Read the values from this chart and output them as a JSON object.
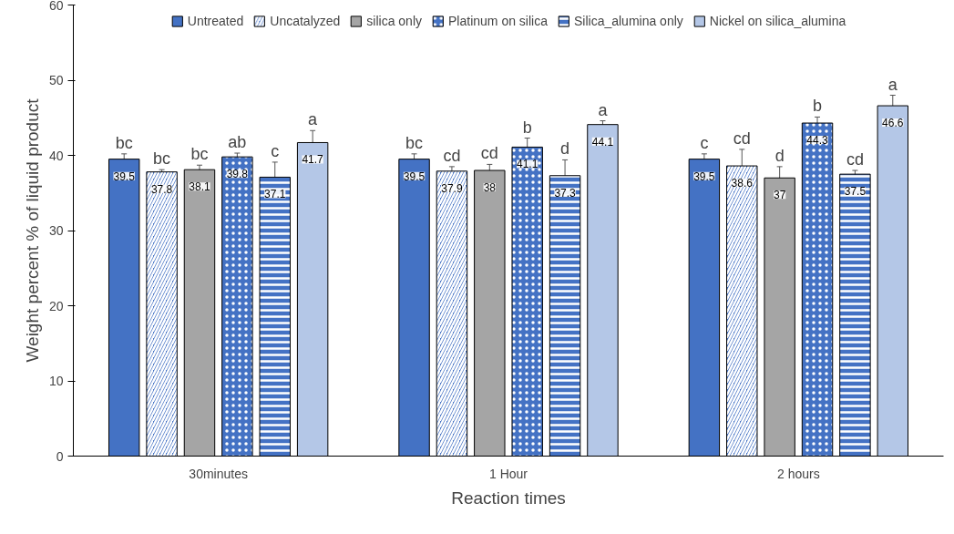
{
  "chart_data": {
    "type": "bar",
    "xlabel": "Reaction times",
    "ylabel": "Weight percent % of liquid product",
    "categories": [
      "30minutes",
      "1 Hour",
      "2 hours"
    ],
    "series": [
      {
        "name": "Untreated",
        "color": "#4472c4",
        "values": [
          39.5,
          39.5,
          39.5
        ],
        "errors": [
          0.7,
          0.7,
          0.7
        ]
      },
      {
        "name": "Uncatalyzed",
        "color": "#4472c4",
        "values": [
          37.8,
          37.9,
          38.6
        ],
        "errors": [
          0.3,
          0.6,
          2.2
        ]
      },
      {
        "name": "silica only",
        "color": "#a5a5a5",
        "values": [
          38.1,
          38,
          37
        ],
        "errors": [
          0.6,
          0.8,
          1.5
        ]
      },
      {
        "name": "Platinum on silica",
        "color": "#4472c4",
        "values": [
          39.8,
          41.1,
          44.3
        ],
        "errors": [
          0.5,
          1.2,
          0.8
        ]
      },
      {
        "name": "Silica_alumina only",
        "color": "#4472c4",
        "values": [
          37.1,
          37.3,
          37.5
        ],
        "errors": [
          2.0,
          2.1,
          0.5
        ]
      },
      {
        "name": "Nickel on silica_alumina",
        "color": "#b4c7e7",
        "values": [
          41.7,
          44.1,
          46.6
        ],
        "errors": [
          1.6,
          0.5,
          1.4
        ]
      }
    ],
    "annotations": [
      "bc",
      "bc",
      "bc",
      "ab",
      "c",
      "a",
      "bc",
      "cd",
      "cd",
      "b",
      "d",
      "a",
      "c",
      "cd",
      "d",
      "b",
      "cd",
      "a"
    ],
    "ylim": [
      0,
      60
    ],
    "yticks": [
      0,
      10,
      20,
      30,
      40,
      50,
      60
    ],
    "data_labels": true,
    "legend": "top",
    "grid": false
  }
}
